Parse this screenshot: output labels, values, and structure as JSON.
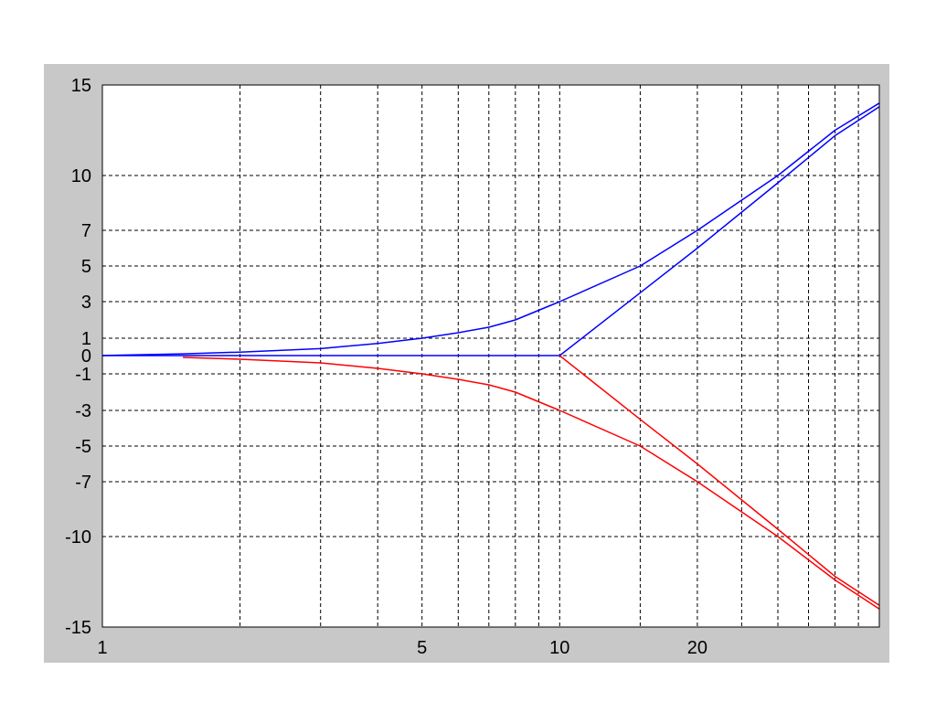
{
  "chart_data": {
    "type": "line",
    "title": "",
    "xlabel": "",
    "ylabel": "",
    "x_scale": "log",
    "xlim": [
      1,
      50
    ],
    "ylim": [
      -15,
      15
    ],
    "grid": true,
    "x_ticks": [
      {
        "value": 1,
        "label": "1"
      },
      {
        "value": 5,
        "label": "5"
      },
      {
        "value": 10,
        "label": "10"
      },
      {
        "value": 20,
        "label": "20"
      }
    ],
    "x_gridlines": [
      2,
      3,
      4,
      5,
      6,
      7,
      8,
      9,
      10,
      15,
      20,
      25,
      30,
      35,
      40,
      45
    ],
    "y_ticks": [
      {
        "value": 15,
        "label": "15"
      },
      {
        "value": 10,
        "label": "10"
      },
      {
        "value": 7,
        "label": "7"
      },
      {
        "value": 5,
        "label": "5"
      },
      {
        "value": 3,
        "label": "3"
      },
      {
        "value": 1,
        "label": "1"
      },
      {
        "value": 0,
        "label": "0"
      },
      {
        "value": -1,
        "label": "-1"
      },
      {
        "value": -3,
        "label": "-3"
      },
      {
        "value": -5,
        "label": "-5"
      },
      {
        "value": -7,
        "label": "-7"
      },
      {
        "value": -10,
        "label": "-10"
      },
      {
        "value": -15,
        "label": "-15"
      }
    ],
    "series": [
      {
        "color": "#0000ff",
        "points": [
          [
            1,
            0
          ],
          [
            1.5,
            0.1
          ],
          [
            2,
            0.2
          ],
          [
            3,
            0.4
          ],
          [
            4,
            0.7
          ],
          [
            5,
            1
          ],
          [
            6,
            1.3
          ],
          [
            7,
            1.6
          ],
          [
            8,
            2
          ],
          [
            10,
            3
          ],
          [
            15,
            5
          ],
          [
            20,
            7
          ],
          [
            30,
            10
          ],
          [
            40,
            12.5
          ],
          [
            50,
            14
          ]
        ]
      },
      {
        "color": "#0000ff",
        "points": [
          [
            1,
            0
          ],
          [
            10,
            0
          ],
          [
            15,
            3.5
          ],
          [
            20,
            6
          ],
          [
            30,
            9.6
          ],
          [
            40,
            12.2
          ],
          [
            50,
            13.8
          ]
        ]
      },
      {
        "color": "#ff0000",
        "points": [
          [
            1.5,
            -0.1
          ],
          [
            2,
            -0.2
          ],
          [
            3,
            -0.4
          ],
          [
            4,
            -0.7
          ],
          [
            5,
            -1
          ],
          [
            6,
            -1.3
          ],
          [
            7,
            -1.6
          ],
          [
            8,
            -2
          ],
          [
            10,
            -3
          ],
          [
            15,
            -5
          ],
          [
            20,
            -7
          ],
          [
            30,
            -10
          ],
          [
            40,
            -12.4
          ],
          [
            50,
            -14
          ]
        ]
      },
      {
        "color": "#ff0000",
        "points": [
          [
            10,
            0
          ],
          [
            15,
            -3.5
          ],
          [
            20,
            -6
          ],
          [
            30,
            -9.6
          ],
          [
            40,
            -12.2
          ],
          [
            50,
            -13.8
          ]
        ]
      }
    ],
    "colors": {
      "panel": "#c8c8c8",
      "plot_bg": "#ffffff",
      "grid": "#000000"
    }
  }
}
